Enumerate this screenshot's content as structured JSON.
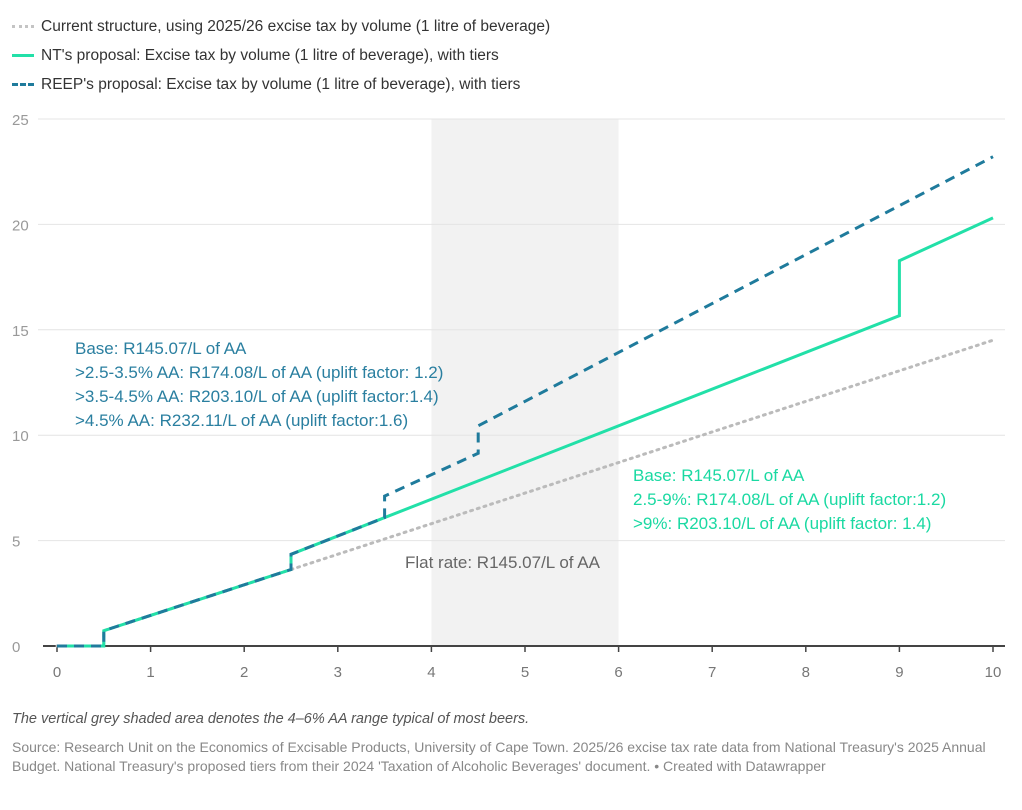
{
  "chart_data": {
    "type": "line",
    "xlim": [
      0,
      10
    ],
    "ylim": [
      0,
      25
    ],
    "x_ticks": [
      "0",
      "1",
      "2",
      "3",
      "4",
      "5",
      "6",
      "7",
      "8",
      "9",
      "10"
    ],
    "y_ticks": [
      "0",
      "5",
      "10",
      "15",
      "20",
      "25"
    ],
    "grid": "horizontal",
    "legend_position": "top-left",
    "shaded_range": {
      "x": [
        4,
        6
      ],
      "color": "#f2f2f2"
    },
    "series": [
      {
        "name": "Current structure, using 2025/26 excise tax by volume (1 litre of beverage)",
        "color": "#bbbbbb",
        "style": "dotted",
        "points": [
          [
            0,
            0
          ],
          [
            0.5,
            0
          ],
          [
            0.5,
            0.725
          ],
          [
            10,
            14.507
          ]
        ]
      },
      {
        "name": "NT's proposal: Excise tax by volume (1 litre of beverage), with tiers",
        "color": "#22e0a8",
        "style": "solid",
        "points": [
          [
            0,
            0
          ],
          [
            0.5,
            0
          ],
          [
            0.5,
            0.725
          ],
          [
            2.5,
            3.627
          ],
          [
            2.5,
            4.352
          ],
          [
            9,
            15.667
          ],
          [
            9,
            18.279
          ],
          [
            10,
            20.31
          ]
        ]
      },
      {
        "name": "REEP's proposal: Excise tax by volume (1 litre of beverage), with tiers",
        "color": "#1f7b9c",
        "style": "dashed",
        "points": [
          [
            0,
            0
          ],
          [
            0.5,
            0
          ],
          [
            0.5,
            0.725
          ],
          [
            2.5,
            3.627
          ],
          [
            2.5,
            4.352
          ],
          [
            3.5,
            6.093
          ],
          [
            3.5,
            7.109
          ],
          [
            4.5,
            9.14
          ],
          [
            4.5,
            10.445
          ],
          [
            10,
            23.211
          ]
        ]
      }
    ],
    "annotations": {
      "reep": [
        "Base: R145.07/L of AA",
        ">2.5-3.5% AA: R174.08/L of AA (uplift factor: 1.2)",
        ">3.5-4.5% AA: R203.10/L of AA (uplift factor:1.4)",
        ">4.5% AA: R232.11/L of AA (uplift factor:1.6)"
      ],
      "nt": [
        "Base: R145.07/L of AA",
        "2.5-9%: R174.08/L of AA (uplift factor:1.2)",
        ">9%: R203.10/L of AA (uplift factor: 1.4)"
      ],
      "flat": "Flat rate: R145.07/L of AA"
    }
  },
  "colors": {
    "reep_text": "#2a7fa0",
    "nt_text": "#1ad9a2",
    "flat_text": "#666666"
  },
  "note": "The vertical grey shaded area denotes the 4–6% AA range typical of most beers.",
  "source": "Source: Research Unit on the Economics of Excisable Products, University of Cape Town. 2025/26 excise tax rate data from National Treasury's 2025 Annual Budget. National Treasury's proposed tiers from their 2024 'Taxation of Alcoholic Beverages' document. • Created with Datawrapper"
}
